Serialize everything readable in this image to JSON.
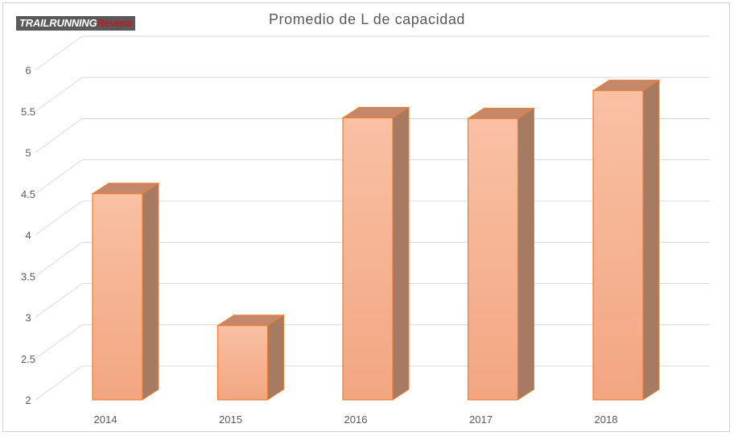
{
  "logo": {
    "part1": "TRAILRUNNING",
    "part2": "Review"
  },
  "colors": {
    "bar_front_top": "#f9c0a3",
    "bar_front_bottom": "#f2a682",
    "bar_side": "#a77a62",
    "bar_top": "#c4876a",
    "bar_edge": "#ed7d31",
    "grid": "#d9d9d9",
    "text": "#595959"
  },
  "chart_data": {
    "type": "bar",
    "title": "Promedio  de L de capacidad",
    "categories": [
      "2014",
      "2015",
      "2016",
      "2017",
      "2018"
    ],
    "values": [
      4.5,
      2.9,
      5.42,
      5.41,
      5.75
    ],
    "y_ticks": [
      "2",
      "2.5",
      "3",
      "3.5",
      "4",
      "4.5",
      "5",
      "5.5",
      "6"
    ],
    "ylim": [
      2,
      6
    ],
    "xlabel": "",
    "ylabel": "",
    "grid": true,
    "style": "3d-column"
  }
}
